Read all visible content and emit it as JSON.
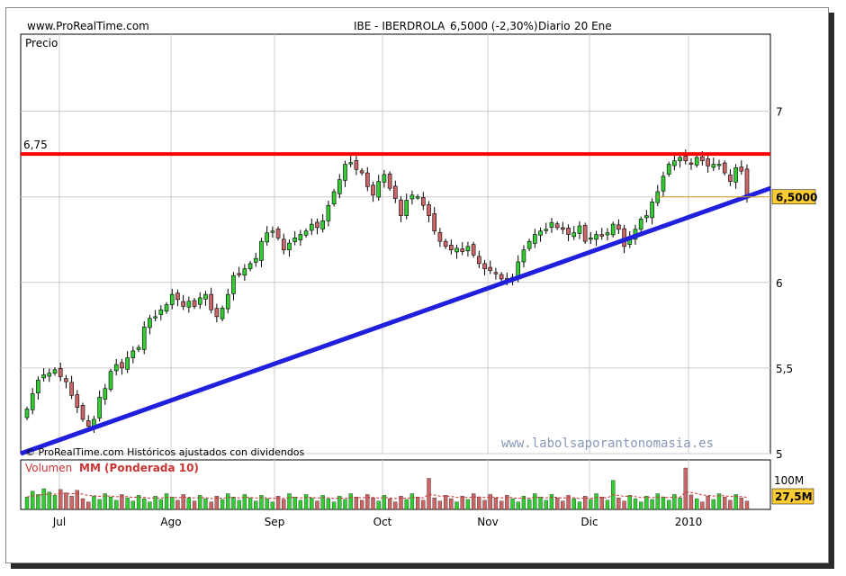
{
  "header": {
    "site": "www.ProRealTime.com",
    "ticker": "IBE - IBERDROLA",
    "price_change": "6,5000 (-2,30%)",
    "period": "Diario",
    "date": "20 Ene"
  },
  "price_panel": {
    "label": "Precio",
    "footer_note": "© ProRealTime.com  Históricos ajustados con dividendos",
    "watermark": "www.labolsaporantonomasia.es",
    "resistance_label": "6,75",
    "current_price_label": "6,5000"
  },
  "volume_panel": {
    "label_volume": "Volumen",
    "label_mm": "MM (Ponderada 10)",
    "axis_label": "100M",
    "current_label": "27,5M"
  },
  "chart_data": {
    "type": "candlestick",
    "y_ticks": [
      "7",
      "6,5",
      "6",
      "5,5",
      "5"
    ],
    "ylim": [
      5,
      7.45
    ],
    "x_ticks": [
      "Jul",
      "Ago",
      "Sep",
      "Oct",
      "Nov",
      "Dic",
      "2010"
    ],
    "resistance": 6.75,
    "trendline": {
      "start": 5.0,
      "end": 6.55
    },
    "current_price": 6.5,
    "colors": {
      "up": "#33cc33",
      "down": "#cc6666",
      "resistance": "#ff0000",
      "trend": "#1f1fdd",
      "price_box": "#ffcc33"
    },
    "close": [
      5.26,
      5.35,
      5.43,
      5.46,
      5.47,
      5.49,
      5.45,
      5.42,
      5.34,
      5.27,
      5.2,
      5.16,
      5.2,
      5.33,
      5.38,
      5.48,
      5.52,
      5.5,
      5.56,
      5.6,
      5.62,
      5.74,
      5.79,
      5.8,
      5.84,
      5.87,
      5.93,
      5.9,
      5.86,
      5.89,
      5.86,
      5.91,
      5.93,
      5.84,
      5.8,
      5.85,
      5.93,
      6.04,
      6.05,
      6.08,
      6.11,
      6.14,
      6.24,
      6.29,
      6.3,
      6.26,
      6.19,
      6.23,
      6.26,
      6.28,
      6.3,
      6.34,
      6.32,
      6.36,
      6.45,
      6.53,
      6.6,
      6.69,
      6.7,
      6.66,
      6.64,
      6.56,
      6.51,
      6.59,
      6.63,
      6.55,
      6.49,
      6.39,
      6.48,
      6.51,
      6.5,
      6.45,
      6.39,
      6.3,
      6.24,
      6.21,
      6.19,
      6.2,
      6.18,
      6.21,
      6.16,
      6.11,
      6.08,
      6.07,
      6.05,
      6.02,
      6.01,
      6.03,
      6.12,
      6.19,
      6.24,
      6.28,
      6.3,
      6.31,
      6.35,
      6.32,
      6.31,
      6.28,
      6.29,
      6.33,
      6.24,
      6.26,
      6.28,
      6.27,
      6.29,
      6.34,
      6.31,
      6.21,
      6.26,
      6.31,
      6.37,
      6.39,
      6.47,
      6.53,
      6.62,
      6.69,
      6.71,
      6.73,
      6.71,
      6.69,
      6.73,
      6.71,
      6.68,
      6.69,
      6.69,
      6.64,
      6.59,
      6.67,
      6.65,
      6.5
    ],
    "volume_series": "relative daily volume bars; MM (Ponderada 10) dashed average"
  }
}
